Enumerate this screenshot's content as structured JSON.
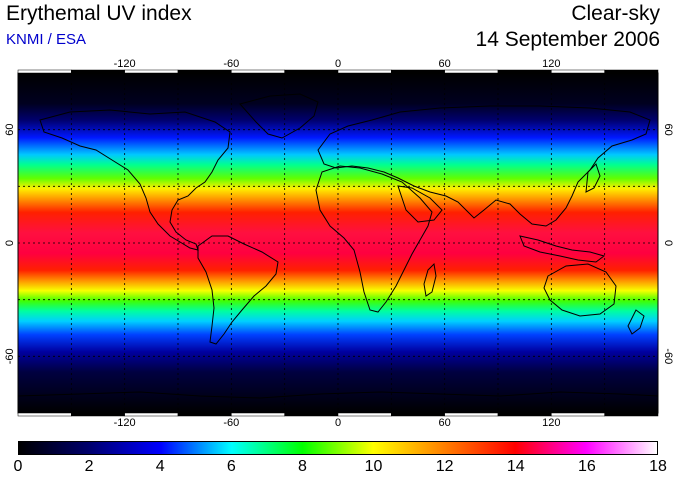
{
  "header": {
    "title": "Erythemal UV index",
    "subtitle": "KNMI / ESA",
    "mode": "Clear-sky",
    "date": "14 September 2006"
  },
  "colors": {
    "subtitle": "#0000cc",
    "scale": [
      "#000000",
      "#00006e",
      "#0000ff",
      "#00ffff",
      "#00ff00",
      "#ffff00",
      "#ff7f00",
      "#ff0000",
      "#ff00ff",
      "#ffffff"
    ]
  },
  "map": {
    "lon_range": [
      -180,
      180
    ],
    "lat_range": [
      -90,
      90
    ],
    "lon_ticks": [
      -120,
      -60,
      0,
      60,
      120
    ],
    "lat_ticks": [
      60,
      0,
      -60
    ],
    "lon_tick_labels": [
      "-120",
      "-60",
      "0",
      "60",
      "120"
    ],
    "lat_tick_labels": [
      "60",
      "0",
      "-60"
    ],
    "gridlines": true
  },
  "colorbar": {
    "range": [
      0,
      18
    ],
    "labels": [
      "0",
      "2",
      "4",
      "6",
      "8",
      "10",
      "12",
      "14",
      "16",
      "18"
    ]
  }
}
